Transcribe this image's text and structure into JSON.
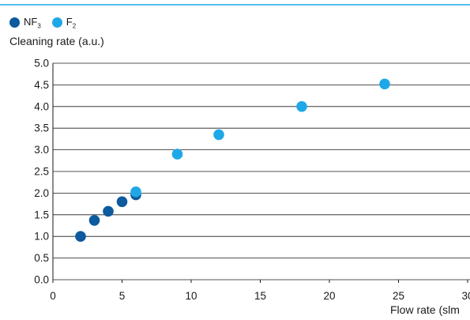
{
  "chart_data": {
    "type": "scatter",
    "title": "",
    "ylabel": "Cleaning rate (a.u.)",
    "xlabel": "Flow rate (slm",
    "xlim": [
      0,
      30
    ],
    "ylim": [
      0,
      5
    ],
    "xticks": [
      "0",
      "5",
      "10",
      "15",
      "20",
      "25",
      "30"
    ],
    "yticks": [
      "0.0",
      "0.5",
      "1.0",
      "1.5",
      "2.0",
      "2.5",
      "3.0",
      "3.5",
      "4.0",
      "4.5",
      "5.0"
    ],
    "grid": true,
    "legend_position": "top-left",
    "series": [
      {
        "name": "NF",
        "name_subscript": "3",
        "color": "#0d5a9e",
        "x": [
          2,
          3,
          4,
          5,
          6
        ],
        "y": [
          1.0,
          1.37,
          1.58,
          1.8,
          1.96
        ]
      },
      {
        "name": "F",
        "name_subscript": "2",
        "color": "#1fa8e8",
        "x": [
          6,
          9,
          12,
          18,
          24
        ],
        "y": [
          2.03,
          2.9,
          3.35,
          4.0,
          4.52
        ]
      }
    ]
  },
  "colors": {
    "header_line": "#1fa8e8",
    "grid": "#1a1a1a"
  }
}
